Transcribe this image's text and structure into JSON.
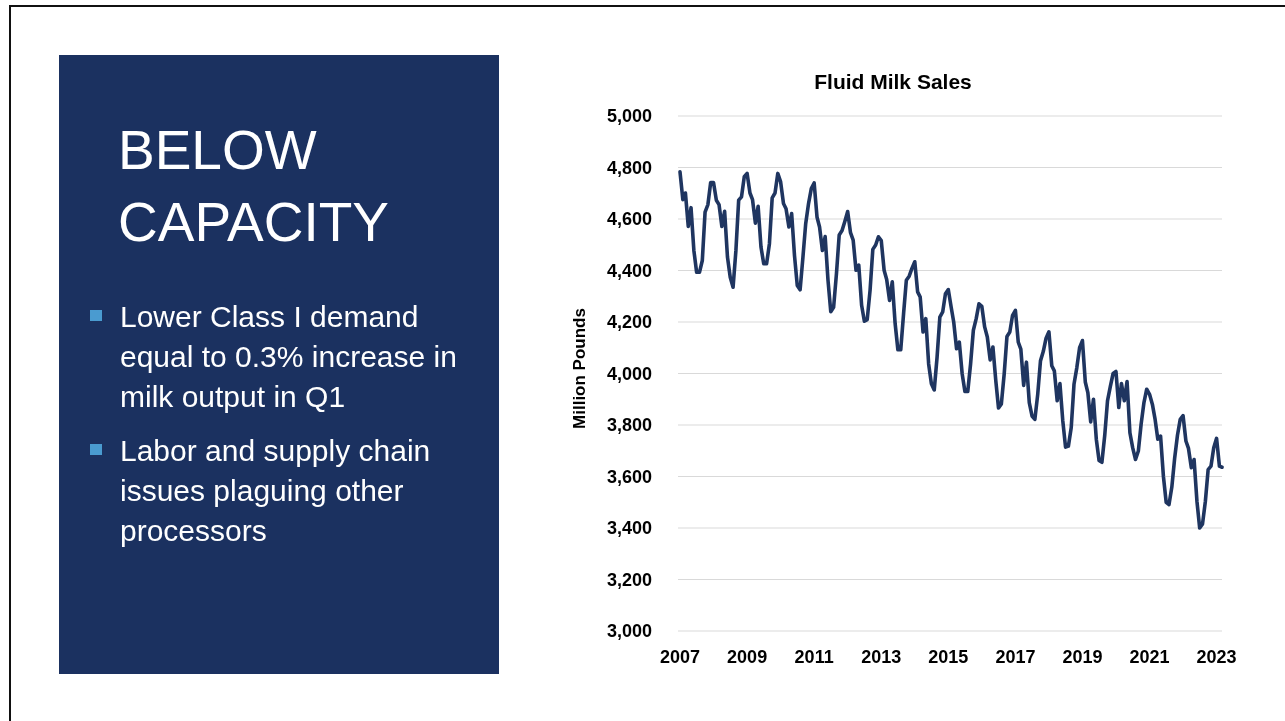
{
  "chart_data": [
    {
      "type": "other",
      "title": "BELOW CAPACITY",
      "annotations": [
        "Lower Class I demand equal to 0.3% increase in milk output in Q1",
        "Labor and supply chain issues plaguing other processors"
      ]
    },
    {
      "type": "line",
      "title": "Fluid Milk Sales",
      "ylabel": "Million Pounds",
      "x": [
        "2007-01",
        "2007-02",
        "2007-03",
        "2007-04",
        "2007-05",
        "2007-06",
        "2007-07",
        "2007-08",
        "2007-09",
        "2007-10",
        "2007-11",
        "2007-12",
        "2008-01",
        "2008-02",
        "2008-03",
        "2008-04",
        "2008-05",
        "2008-06",
        "2008-07",
        "2008-08",
        "2008-09",
        "2008-10",
        "2008-11",
        "2008-12",
        "2009-01",
        "2009-02",
        "2009-03",
        "2009-04",
        "2009-05",
        "2009-06",
        "2009-07",
        "2009-08",
        "2009-09",
        "2009-10",
        "2009-11",
        "2009-12",
        "2010-01",
        "2010-02",
        "2010-03",
        "2010-04",
        "2010-05",
        "2010-06",
        "2010-07",
        "2010-08",
        "2010-09",
        "2010-10",
        "2010-11",
        "2010-12",
        "2011-01",
        "2011-02",
        "2011-03",
        "2011-04",
        "2011-05",
        "2011-06",
        "2011-07",
        "2011-08",
        "2011-09",
        "2011-10",
        "2011-11",
        "2011-12",
        "2012-01",
        "2012-02",
        "2012-03",
        "2012-04",
        "2012-05",
        "2012-06",
        "2012-07",
        "2012-08",
        "2012-09",
        "2012-10",
        "2012-11",
        "2012-12",
        "2013-01",
        "2013-02",
        "2013-03",
        "2013-04",
        "2013-05",
        "2013-06",
        "2013-07",
        "2013-08",
        "2013-09",
        "2013-10",
        "2013-11",
        "2013-12",
        "2014-01",
        "2014-02",
        "2014-03",
        "2014-04",
        "2014-05",
        "2014-06",
        "2014-07",
        "2014-08",
        "2014-09",
        "2014-10",
        "2014-11",
        "2014-12",
        "2015-01",
        "2015-02",
        "2015-03",
        "2015-04",
        "2015-05",
        "2015-06",
        "2015-07",
        "2015-08",
        "2015-09",
        "2015-10",
        "2015-11",
        "2015-12",
        "2016-01",
        "2016-02",
        "2016-03",
        "2016-04",
        "2016-05",
        "2016-06",
        "2016-07",
        "2016-08",
        "2016-09",
        "2016-10",
        "2016-11",
        "2016-12",
        "2017-01",
        "2017-02",
        "2017-03",
        "2017-04",
        "2017-05",
        "2017-06",
        "2017-07",
        "2017-08",
        "2017-09",
        "2017-10",
        "2017-11",
        "2017-12",
        "2018-01",
        "2018-02",
        "2018-03",
        "2018-04",
        "2018-05",
        "2018-06",
        "2018-07",
        "2018-08",
        "2018-09",
        "2018-10",
        "2018-11",
        "2018-12",
        "2019-01",
        "2019-02",
        "2019-03",
        "2019-04",
        "2019-05",
        "2019-06",
        "2019-07",
        "2019-08",
        "2019-09",
        "2019-10",
        "2019-11",
        "2019-12",
        "2020-01",
        "2020-02",
        "2020-03",
        "2020-04",
        "2020-05",
        "2020-06",
        "2020-07",
        "2020-08",
        "2020-09",
        "2020-10",
        "2020-11",
        "2020-12",
        "2021-01",
        "2021-02",
        "2021-03",
        "2021-04",
        "2021-05",
        "2021-06",
        "2021-07",
        "2021-08",
        "2021-09",
        "2021-10",
        "2021-11",
        "2021-12",
        "2022-01",
        "2022-02",
        "2022-03",
        "2022-04",
        "2022-05",
        "2022-06",
        "2022-07",
        "2022-08",
        "2022-09",
        "2022-10",
        "2022-11",
        "2022-12",
        "2023-01",
        "2023-02",
        "2023-03"
      ],
      "series": [
        {
          "color": "#1f3560",
          "values": [
            4783,
            4675,
            4701,
            4571,
            4644,
            4478,
            4393,
            4393,
            4439,
            4627,
            4656,
            4742,
            4742,
            4673,
            4656,
            4571,
            4630,
            4452,
            4374,
            4335,
            4478,
            4673,
            4686,
            4764,
            4777,
            4701,
            4675,
            4584,
            4649,
            4491,
            4426,
            4426,
            4504,
            4682,
            4701,
            4777,
            4744,
            4660,
            4640,
            4569,
            4621,
            4458,
            4342,
            4325,
            4452,
            4582,
            4660,
            4718,
            4740,
            4608,
            4569,
            4478,
            4532,
            4362,
            4240,
            4257,
            4388,
            4538,
            4555,
            4590,
            4629,
            4547,
            4518,
            4401,
            4421,
            4265,
            4203,
            4209,
            4323,
            4482,
            4499,
            4531,
            4516,
            4401,
            4365,
            4284,
            4356,
            4194,
            4092,
            4092,
            4232,
            4362,
            4378,
            4408,
            4434,
            4317,
            4297,
            4161,
            4213,
            4037,
            3960,
            3936,
            4064,
            4219,
            4239,
            4310,
            4326,
            4258,
            4200,
            4096,
            4122,
            3999,
            3930,
            3930,
            4038,
            4168,
            4213,
            4271,
            4261,
            4181,
            4142,
            4053,
            4103,
            3973,
            3866,
            3882,
            3999,
            4144,
            4161,
            4226,
            4245,
            4122,
            4095,
            3954,
            4044,
            3887,
            3835,
            3822,
            3919,
            4049,
            4086,
            4137,
            4162,
            4030,
            4010,
            3894,
            3961,
            3816,
            3714,
            3718,
            3790,
            3958,
            4023,
            4100,
            4128,
            3967,
            3926,
            3812,
            3900,
            3745,
            3662,
            3655,
            3760,
            3894,
            3950,
            4000,
            4008,
            3868,
            3961,
            3894,
            3969,
            3770,
            3712,
            3666,
            3699,
            3803,
            3887,
            3939,
            3919,
            3880,
            3825,
            3745,
            3757,
            3600,
            3500,
            3491,
            3560,
            3670,
            3760,
            3822,
            3836,
            3738,
            3709,
            3634,
            3666,
            3504,
            3400,
            3416,
            3504,
            3627,
            3640,
            3712,
            3748,
            3640,
            3636
          ]
        }
      ],
      "xlim": [
        "2007-01",
        "2023-03"
      ],
      "xticks": [
        "2007",
        "2009",
        "2011",
        "2013",
        "2015",
        "2017",
        "2019",
        "2021",
        "2023"
      ],
      "ylim": [
        3000,
        5000
      ],
      "yticks": [
        {
          "value": 3000,
          "label": "3,000"
        },
        {
          "value": 3200,
          "label": "3,200"
        },
        {
          "value": 3400,
          "label": "3,400"
        },
        {
          "value": 3600,
          "label": "3,600"
        },
        {
          "value": 3800,
          "label": "3,800"
        },
        {
          "value": 4000,
          "label": "4,000"
        },
        {
          "value": 4200,
          "label": "4,200"
        },
        {
          "value": 4400,
          "label": "4,400"
        },
        {
          "value": 4600,
          "label": "4,600"
        },
        {
          "value": 4800,
          "label": "4,800"
        },
        {
          "value": 5000,
          "label": "5,000"
        }
      ],
      "grid": "y"
    }
  ]
}
